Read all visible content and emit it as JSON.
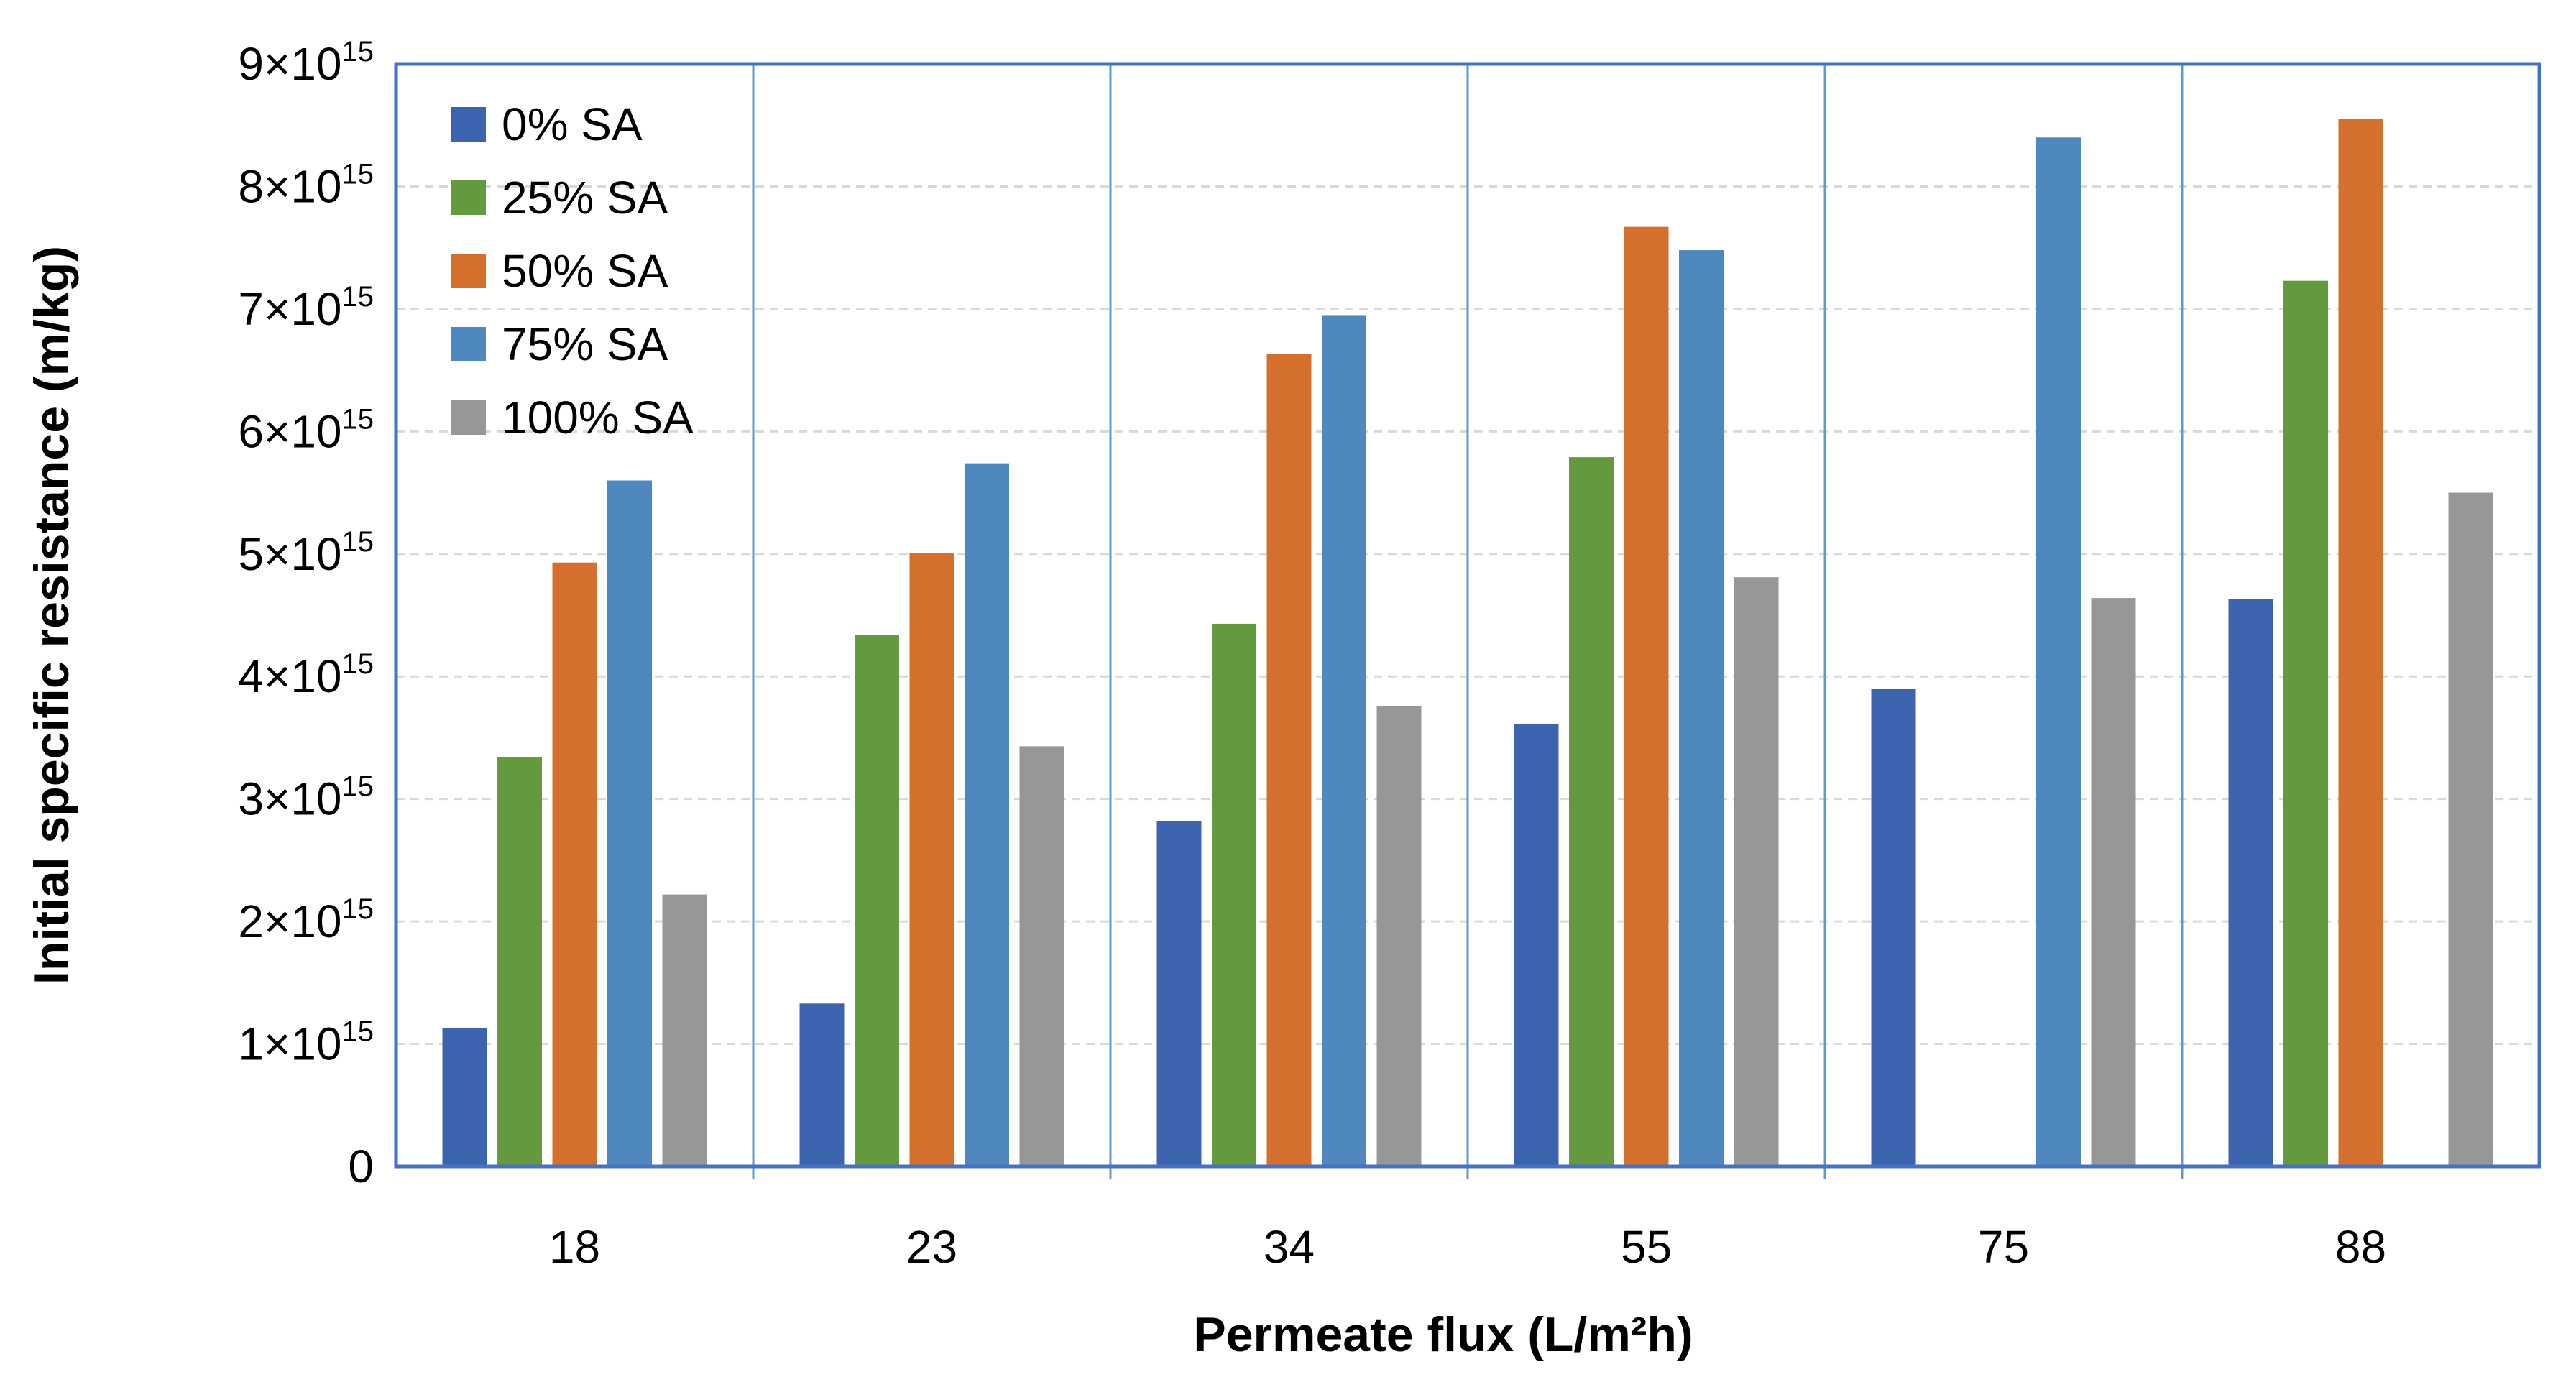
{
  "chart_data": {
    "type": "bar",
    "title": "",
    "xlabel": "Permeate flux (L/m²h)",
    "ylabel": "Initial specific resistance (m/kg)",
    "categories": [
      "18",
      "23",
      "34",
      "55",
      "75",
      "88"
    ],
    "ylim": [
      0,
      9000000000000000.0
    ],
    "yticks": [
      {
        "value": 0,
        "label": "0"
      },
      {
        "value": 1000000000000000.0,
        "mantissa": "1×10",
        "exponent": "15"
      },
      {
        "value": 2000000000000000.0,
        "mantissa": "2×10",
        "exponent": "15"
      },
      {
        "value": 3000000000000000.0,
        "mantissa": "3×10",
        "exponent": "15"
      },
      {
        "value": 4000000000000000.0,
        "mantissa": "4×10",
        "exponent": "15"
      },
      {
        "value": 5000000000000000.0,
        "mantissa": "5×10",
        "exponent": "15"
      },
      {
        "value": 6000000000000000.0,
        "mantissa": "6×10",
        "exponent": "15"
      },
      {
        "value": 7000000000000000.0,
        "mantissa": "7×10",
        "exponent": "15"
      },
      {
        "value": 8000000000000000.0,
        "mantissa": "8×10",
        "exponent": "15"
      },
      {
        "value": 9000000000000000.0,
        "mantissa": "9×10",
        "exponent": "15"
      }
    ],
    "grid": true,
    "legend_position": "top-left",
    "series": [
      {
        "name": "0% SA",
        "color": "#3c64ae",
        "values": [
          1130000000000000.0,
          1330000000000000.0,
          2820000000000000.0,
          3610000000000000.0,
          3900000000000000.0,
          4630000000000000.0
        ]
      },
      {
        "name": "25% SA",
        "color": "#629a3d",
        "values": [
          3340000000000000.0,
          4340000000000000.0,
          4430000000000000.0,
          5790000000000000.0,
          null,
          7230000000000000.0
        ]
      },
      {
        "name": "50% SA",
        "color": "#d46f2d",
        "values": [
          4930000000000000.0,
          5010000000000000.0,
          6630000000000000.0,
          7670000000000000.0,
          null,
          8550000000000000.0
        ]
      },
      {
        "name": "75% SA",
        "color": "#4f88bf",
        "values": [
          5600000000000000.0,
          5740000000000000.0,
          6950000000000000.0,
          7480000000000000.0,
          8400000000000000.0,
          null
        ]
      },
      {
        "name": "100% SA",
        "color": "#979797",
        "values": [
          2220000000000000.0,
          3430000000000000.0,
          3760000000000000.0,
          4810000000000000.0,
          4640000000000000.0,
          5500000000000000.0
        ]
      }
    ]
  }
}
